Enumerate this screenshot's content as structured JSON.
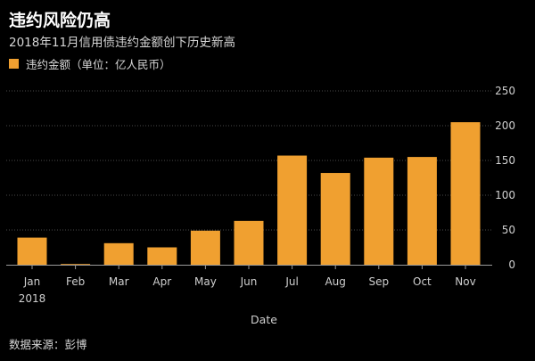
{
  "title": "违约风险仍高",
  "subtitle": "2018年11月信用债违约金额创下历史新高",
  "source": "数据来源：彭博",
  "colors": {
    "background": "#000000",
    "bar": "#f0a030",
    "grid": "#4a4a4a",
    "axis": "#9a9a9a",
    "text": "#cfcfcf"
  },
  "chart_data": {
    "type": "bar",
    "categories": [
      "Jan",
      "Feb",
      "Mar",
      "Apr",
      "May",
      "Jun",
      "Jul",
      "Aug",
      "Sep",
      "Oct",
      "Nov"
    ],
    "year_label": "2018",
    "series": [
      {
        "name": "违约金额（单位：亿人民币）",
        "values": [
          39,
          1,
          31,
          25,
          49,
          63,
          157,
          132,
          154,
          155,
          205
        ]
      }
    ],
    "xlabel": "Date",
    "ylabel": "",
    "ylim": [
      0,
      250
    ],
    "yticks": [
      0,
      50,
      100,
      150,
      200,
      250
    ],
    "grid": true,
    "legend_position": "top-left"
  }
}
